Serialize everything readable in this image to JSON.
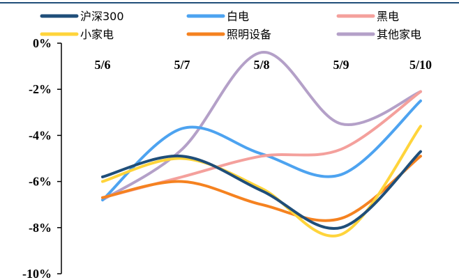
{
  "chart_data": {
    "type": "line",
    "title": "",
    "xlabel": "",
    "ylabel": "",
    "categories": [
      "5/6",
      "5/7",
      "5/8",
      "5/9",
      "5/10"
    ],
    "y_ticks": [
      "0%",
      "-2%",
      "-4%",
      "-6%",
      "-8%",
      "-10%"
    ],
    "ylim": [
      -10,
      0
    ],
    "y_unit": "%",
    "grid": false,
    "legend_position": "top",
    "series": [
      {
        "name": "沪深300",
        "color": "#1f4e79",
        "values": [
          -5.8,
          -4.9,
          -6.4,
          -8.0,
          -4.7
        ]
      },
      {
        "name": "白电",
        "color": "#4da3f0",
        "values": [
          -6.8,
          -3.7,
          -4.8,
          -5.7,
          -2.5
        ]
      },
      {
        "name": "黑电",
        "color": "#f4a09c",
        "values": [
          -6.7,
          -5.8,
          -4.9,
          -4.6,
          -2.1
        ]
      },
      {
        "name": "小家电",
        "color": "#ffd43b",
        "values": [
          -6.0,
          -5.0,
          -6.3,
          -8.3,
          -3.6
        ]
      },
      {
        "name": "照明设备",
        "color": "#f58220",
        "values": [
          -6.7,
          -6.0,
          -7.0,
          -7.6,
          -4.9
        ]
      },
      {
        "name": "其他家电",
        "color": "#b4a0c8",
        "values": [
          -6.8,
          -4.6,
          -0.4,
          -3.5,
          -2.1
        ]
      }
    ]
  }
}
